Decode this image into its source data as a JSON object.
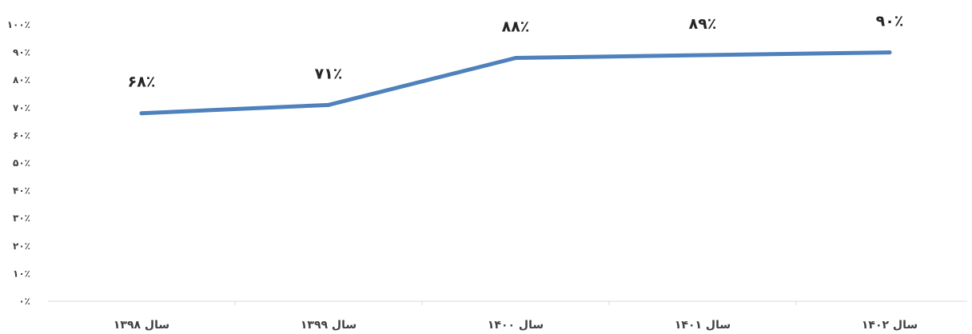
{
  "chart_data": {
    "type": "line",
    "categories": [
      "سال ۱۳۹۸",
      "سال ۱۳۹۹",
      "سال ۱۴۰۰",
      "سال ۱۴۰۱",
      "سال ۱۴۰۲"
    ],
    "series": [
      {
        "values": [
          68,
          71,
          88,
          89,
          90
        ],
        "color": "#4f81bd"
      }
    ],
    "data_labels": [
      "۶۸٪",
      "۷۱٪",
      "۸۸٪",
      "۸۹٪",
      "۹۰٪"
    ],
    "yticks": [
      "۰٪",
      "۱۰٪",
      "۲۰٪",
      "۳۰٪",
      "۴۰٪",
      "۵۰٪",
      "۶۰٪",
      "۷۰٪",
      "۸۰٪",
      "۹۰٪",
      "۱۰۰٪"
    ],
    "ylim": [
      0,
      100
    ],
    "grid": false,
    "legend": "none",
    "title": "",
    "xlabel": "",
    "ylabel": ""
  }
}
